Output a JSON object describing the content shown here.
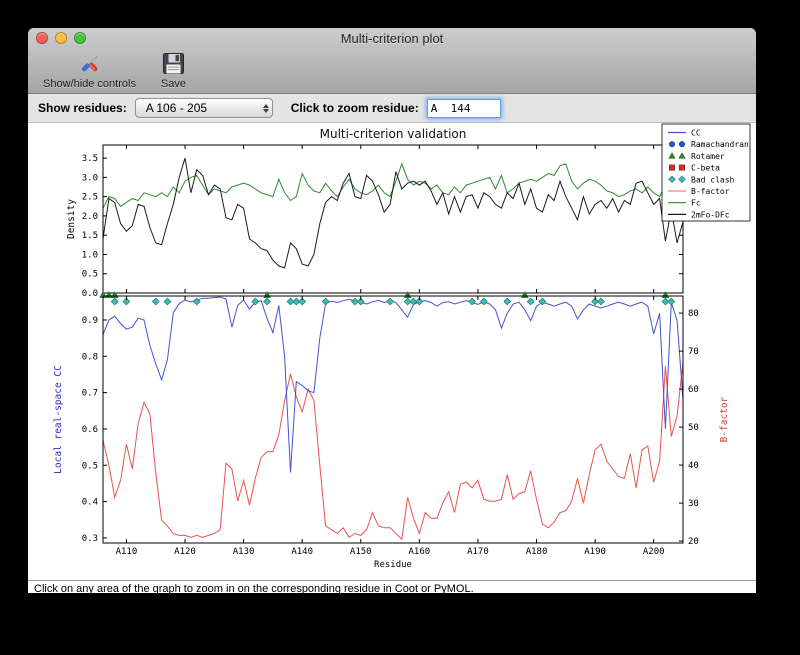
{
  "window": {
    "title": "Multi-criterion plot"
  },
  "toolbar": {
    "show_hide_label": "Show/hide controls",
    "save_label": "Save"
  },
  "controls": {
    "show_residues_label": "Show residues:",
    "residue_range_value": "A 106 - 205",
    "zoom_residue_label": "Click to zoom residue:",
    "zoom_residue_value": "A  144"
  },
  "statusbar": {
    "text": "Click on any area of the graph to zoom in on the corresponding residue in Coot or PyMOL."
  },
  "colors": {
    "cc_line": "#4253cf",
    "bfactor_line": "#e8534e",
    "fc_line": "#2c8a2c",
    "map_line": "#1a1a1a",
    "left_axis_label": "#2a2ad4",
    "right_axis_label": "#d23b35",
    "rama_marker": "#2a52cc",
    "rotamer_marker": "#2c8a2c",
    "cbeta_marker": "#cc3226",
    "clash_marker": "#3fbdb4"
  },
  "chart_data": {
    "type": "line",
    "title": "Multi-criterion validation",
    "x_label": "Residue",
    "x_start": 106,
    "x_end": 205,
    "x_tick_values": [
      110,
      120,
      130,
      140,
      150,
      160,
      170,
      180,
      190,
      200
    ],
    "x_tick_labels": [
      "A110",
      "A120",
      "A130",
      "A140",
      "A150",
      "A160",
      "A170",
      "A180",
      "A190",
      "A200"
    ],
    "top_plot": {
      "y_label": "Density",
      "y_ticks": [
        0.0,
        0.5,
        1.0,
        1.5,
        2.0,
        2.5,
        3.0,
        3.5
      ],
      "ylim": [
        0,
        3.84
      ],
      "series": [
        {
          "name": "Fc",
          "color": "#2c8a2c",
          "values": [
            2.2,
            2.5,
            2.45,
            2.25,
            2.35,
            2.45,
            2.4,
            2.6,
            2.55,
            2.5,
            2.6,
            2.5,
            2.75,
            2.6,
            2.9,
            3.0,
            3.05,
            2.8,
            2.55,
            2.7,
            2.65,
            2.6,
            2.75,
            2.8,
            2.85,
            2.8,
            2.7,
            2.6,
            2.55,
            2.5,
            2.95,
            2.6,
            2.4,
            2.5,
            3.1,
            2.8,
            2.65,
            2.6,
            2.85,
            2.65,
            2.5,
            2.75,
            2.95,
            2.7,
            2.6,
            2.55,
            2.65,
            2.8,
            2.6,
            2.5,
            2.9,
            3.35,
            2.95,
            2.8,
            2.9,
            2.85,
            2.7,
            2.8,
            2.6,
            2.55,
            2.75,
            2.6,
            2.8,
            2.85,
            2.9,
            2.95,
            3.0,
            2.7,
            3.05,
            2.6,
            2.7,
            2.85,
            2.9,
            2.95,
            2.9,
            3.0,
            3.1,
            3.05,
            3.3,
            3.35,
            2.9,
            2.7,
            2.85,
            2.95,
            2.9,
            2.8,
            2.65,
            2.6,
            2.5,
            2.55,
            2.65,
            2.7,
            2.6,
            2.75,
            2.6,
            2.5,
            2.8,
            2.6,
            2.45,
            2.85
          ]
        },
        {
          "name": "2mFo-DFc",
          "color": "#1a1a1a",
          "values": [
            1.4,
            2.45,
            2.35,
            1.8,
            1.6,
            1.75,
            2.3,
            2.25,
            1.7,
            1.3,
            1.25,
            1.8,
            2.3,
            3.0,
            3.5,
            2.6,
            3.2,
            3.05,
            2.55,
            2.8,
            2.7,
            1.95,
            1.9,
            2.3,
            2.2,
            1.4,
            1.3,
            1.15,
            1.1,
            0.85,
            0.7,
            0.65,
            1.3,
            1.15,
            0.75,
            0.7,
            1.0,
            1.8,
            2.35,
            2.5,
            2.4,
            2.85,
            3.1,
            2.5,
            2.45,
            3.05,
            2.9,
            2.55,
            2.1,
            2.3,
            3.15,
            2.7,
            2.85,
            2.9,
            2.8,
            2.9,
            2.65,
            2.3,
            2.6,
            2.05,
            2.5,
            2.1,
            2.5,
            2.55,
            2.2,
            2.6,
            2.5,
            2.3,
            2.2,
            2.6,
            2.45,
            2.85,
            2.3,
            2.7,
            2.2,
            2.1,
            2.55,
            2.4,
            2.9,
            2.5,
            2.2,
            1.9,
            2.5,
            2.05,
            2.3,
            2.4,
            2.2,
            2.45,
            2.1,
            2.4,
            2.3,
            2.85,
            2.9,
            2.6,
            2.3,
            2.45,
            1.35,
            2.15,
            1.3,
            1.85
          ]
        }
      ]
    },
    "bottom_plot": {
      "left_axis": {
        "label": "Local real-space CC",
        "color": "#2a2ad4",
        "ticks": [
          0.3,
          0.4,
          0.5,
          0.6,
          0.7,
          0.8,
          0.9
        ],
        "lim": [
          0.286,
          0.966
        ]
      },
      "right_axis": {
        "label": "B-factor",
        "color": "#d23b35",
        "ticks": [
          20,
          30,
          40,
          50,
          60,
          70,
          80
        ],
        "lim": [
          19.5,
          84.5
        ]
      },
      "series": [
        {
          "name": "CC",
          "axis": "left",
          "color": "#4253cf",
          "values": [
            0.86,
            0.9,
            0.91,
            0.89,
            0.875,
            0.88,
            0.905,
            0.9,
            0.83,
            0.78,
            0.735,
            0.79,
            0.92,
            0.945,
            0.955,
            0.95,
            0.955,
            0.96,
            0.96,
            0.962,
            0.963,
            0.958,
            0.88,
            0.94,
            0.955,
            0.93,
            0.95,
            0.953,
            0.905,
            0.865,
            0.94,
            0.8,
            0.48,
            0.73,
            0.72,
            0.705,
            0.7,
            0.85,
            0.945,
            0.952,
            0.948,
            0.953,
            0.957,
            0.952,
            0.948,
            0.944,
            0.95,
            0.954,
            0.948,
            0.953,
            0.948,
            0.928,
            0.908,
            0.943,
            0.95,
            0.953,
            0.948,
            0.938,
            0.948,
            0.95,
            0.944,
            0.949,
            0.953,
            0.948,
            0.943,
            0.949,
            0.944,
            0.928,
            0.878,
            0.918,
            0.944,
            0.949,
            0.928,
            0.898,
            0.938,
            0.948,
            0.944,
            0.938,
            0.944,
            0.949,
            0.938,
            0.903,
            0.928,
            0.944,
            0.938,
            0.933,
            0.938,
            0.944,
            0.949,
            0.944,
            0.938,
            0.944,
            0.949,
            0.938,
            0.862,
            0.918,
            0.6,
            0.948,
            0.898,
            0.68
          ]
        },
        {
          "name": "B-factor",
          "axis": "right",
          "color": "#e8534e",
          "values": [
            46.5,
            40,
            31.5,
            36,
            45.5,
            39,
            51,
            56.5,
            53.5,
            38,
            25.5,
            24,
            22,
            21.5,
            21.5,
            21,
            21.5,
            21,
            21.5,
            22,
            23,
            40.5,
            39,
            30.5,
            36,
            29.5,
            36.5,
            42,
            43.5,
            43.5,
            48,
            57,
            64,
            58,
            54,
            60,
            57,
            40,
            24,
            23,
            22,
            23.5,
            21,
            22,
            21.5,
            23,
            27.5,
            24,
            23.5,
            23.5,
            22,
            20.5,
            31.5,
            26,
            22,
            27.5,
            26,
            26,
            30,
            33,
            27.5,
            35,
            35.5,
            34,
            36,
            31,
            30.5,
            30.5,
            31,
            37.5,
            31,
            32.5,
            33,
            38.5,
            31,
            24.5,
            23.5,
            25,
            27.5,
            28,
            30.5,
            36.5,
            30,
            37.5,
            44,
            45.5,
            41,
            39,
            37,
            36.5,
            43,
            34,
            44,
            45,
            35.5,
            41,
            66,
            47.5,
            53,
            67
          ]
        }
      ],
      "markers": [
        {
          "name": "Ramachandran",
          "shape": "circle",
          "color": "#2a52cc",
          "residues": []
        },
        {
          "name": "Rotamer",
          "shape": "triangle",
          "color": "#2c8a2c",
          "residues": [
            106,
            107,
            108,
            134,
            158,
            178,
            202
          ]
        },
        {
          "name": "C-beta",
          "shape": "square",
          "color": "#cc3226",
          "residues": []
        },
        {
          "name": "Bad clash",
          "shape": "diamond",
          "color": "#3fbdb4",
          "residues": [
            108,
            110,
            115,
            117,
            122,
            132,
            134,
            138,
            139,
            140,
            144,
            149,
            150,
            155,
            158,
            159,
            160,
            169,
            171,
            175,
            179,
            181,
            190,
            191,
            202,
            203
          ]
        }
      ]
    },
    "legend": [
      {
        "label": "CC",
        "kind": "line",
        "color": "#4253cf"
      },
      {
        "label": "Ramachandran",
        "kind": "marker",
        "shape": "circle",
        "color": "#2a52cc"
      },
      {
        "label": "Rotamer",
        "kind": "marker",
        "shape": "triangle",
        "color": "#2c8a2c"
      },
      {
        "label": "C-beta",
        "kind": "marker",
        "shape": "square",
        "color": "#cc3226"
      },
      {
        "label": "Bad clash",
        "kind": "marker",
        "shape": "diamond",
        "color": "#3fbdb4"
      },
      {
        "label": "B-factor",
        "kind": "line",
        "color": "#f0837c"
      },
      {
        "label": "Fc",
        "kind": "line",
        "color": "#2c8a2c"
      },
      {
        "label": "2mFo-DFc",
        "kind": "line",
        "color": "#1a1a1a"
      }
    ]
  }
}
